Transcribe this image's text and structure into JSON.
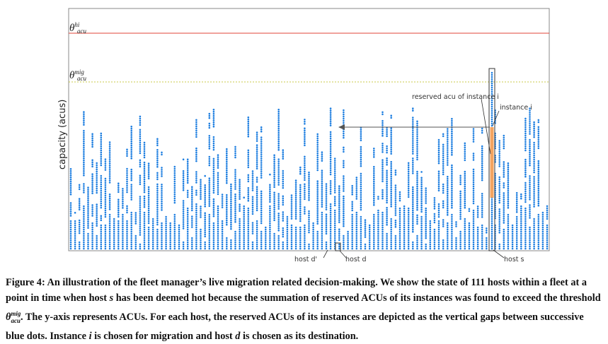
{
  "figure": {
    "ylabel": "capacity (acus)",
    "threshold_hi": {
      "symbol": "θ",
      "sup": "hi",
      "sub": "acu",
      "color": "#e0453a"
    },
    "threshold_mig": {
      "symbol": "θ",
      "sup": "mig",
      "sub": "acu",
      "color": "#c9c94a"
    },
    "annotations": {
      "host_d_prime": "host d'",
      "host_d": "host d",
      "host_s": "host s",
      "instance_i": "instance i",
      "reserved_acu": "reserved acu of instance i"
    },
    "colors": {
      "dots": "#1f7fe0",
      "instance": "#f4a460",
      "arrow": "#555555"
    }
  },
  "caption": {
    "label": "Figure 4:",
    "segments": [
      "An illustration of the fleet manager’s live migration related decision-making. We show the state of 111 hosts within a fleet at a point in time when host ",
      "s",
      " has been deemed hot because the summation of reserved ACUs of its instances was found to exceed the threshold ",
      "θ",
      "mig",
      "acu",
      ". The y-axis represents ACUs. For each host, the reserved ACUs of its instances are depicted as the vertical gaps between successive blue dots. Instance ",
      "i",
      " is chosen for migration and host ",
      "d",
      " is chosen as its destination."
    ]
  }
}
